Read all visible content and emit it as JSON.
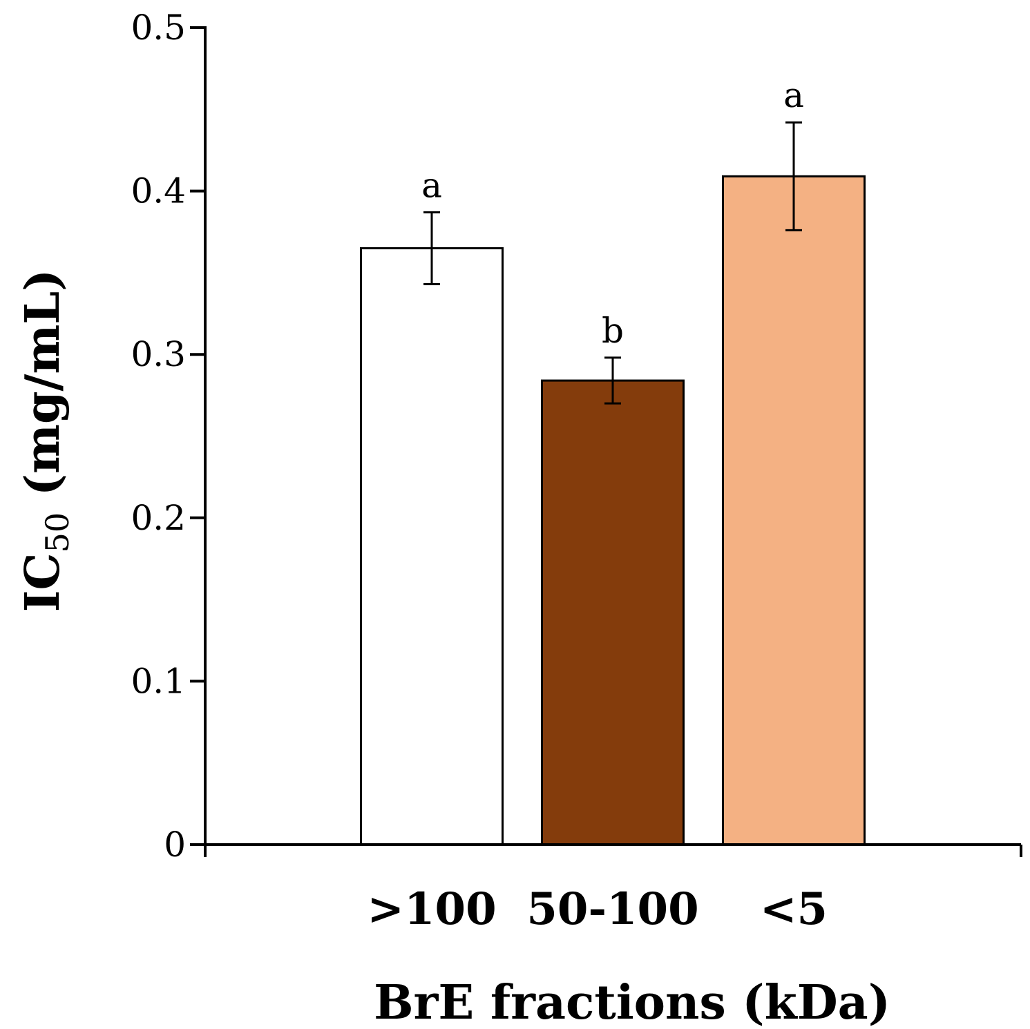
{
  "chart_data": {
    "type": "bar",
    "title": "",
    "xlabel": "BrE fractions (kDa)",
    "ylabel_main": "IC",
    "ylabel_sub": "50",
    "ylabel_unit": " (mg/mL)",
    "categories": [
      ">100",
      "50-100",
      "<5"
    ],
    "values": [
      0.365,
      0.284,
      0.409
    ],
    "errors": [
      0.022,
      0.014,
      0.033
    ],
    "significance": [
      "a",
      "b",
      "a"
    ],
    "colors": [
      "#ffffff",
      "#843c0c",
      "#f4b183"
    ],
    "ylim": [
      0,
      0.5
    ],
    "yticks": [
      "0",
      "0.1",
      "0.2",
      "0.3",
      "0.4",
      "0.5"
    ],
    "ytick_values": [
      0,
      0.1,
      0.2,
      0.3,
      0.4,
      0.5
    ],
    "grid": false,
    "legend": "none"
  }
}
